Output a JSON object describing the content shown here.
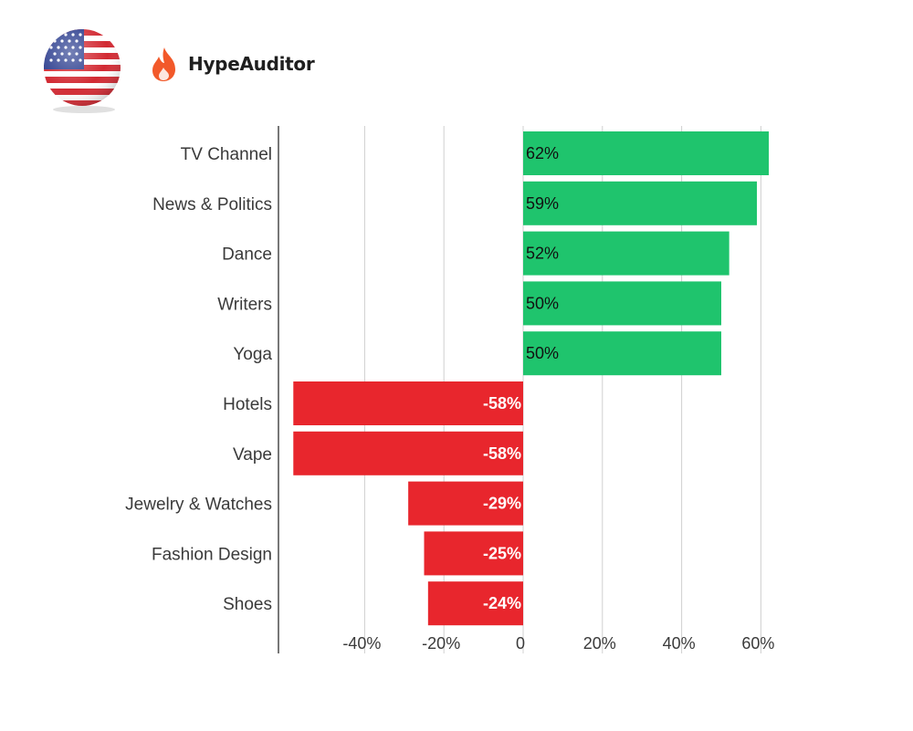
{
  "brand": {
    "name": "HypeAuditor",
    "logo_icon": "flame-icon",
    "logo_color": "#f2592a",
    "flag_icon": "us-flag-icon"
  },
  "chart_data": {
    "type": "bar",
    "orientation": "horizontal",
    "categories": [
      "TV Channel",
      "News & Politics",
      "Dance",
      "Writers",
      "Yoga",
      "Hotels",
      "Vape",
      "Jewelry & Watches",
      "Fashion Design",
      "Shoes"
    ],
    "values": [
      62,
      59,
      52,
      50,
      50,
      -58,
      -58,
      -29,
      -25,
      -24
    ],
    "value_labels": [
      "62%",
      "59%",
      "52%",
      "50%",
      "50%",
      "-58%",
      "-58%",
      "-29%",
      "-25%",
      "-24%"
    ],
    "xlim": [
      -60,
      60
    ],
    "xticks": [
      -40,
      -20,
      0,
      20,
      40,
      60
    ],
    "xtick_labels": [
      "-40%",
      "-20%",
      "0",
      "20%",
      "40%",
      "60%"
    ],
    "grid": true,
    "colors": {
      "positive": "#1fc46d",
      "negative": "#e8262d",
      "grid": "#d0d0d0",
      "axis": "#777777"
    }
  }
}
